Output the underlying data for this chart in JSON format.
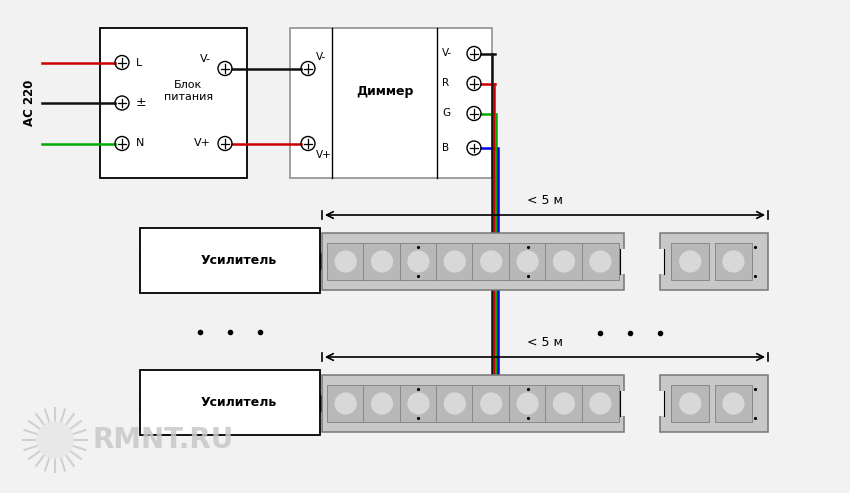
{
  "bg_color": "#f0f0f0",
  "psu_label_line1": "Блок",
  "psu_label_line2": "питания",
  "dimmer_label": "Диммер",
  "amp_label": "Усилитель",
  "ac_label": "AC 220",
  "less5m": "< 5 м",
  "watermark": "RMNT.RU",
  "wire_black": "#111111",
  "wire_red": "#cc0000",
  "wire_green": "#00aa00",
  "wire_blue": "#0000ee"
}
